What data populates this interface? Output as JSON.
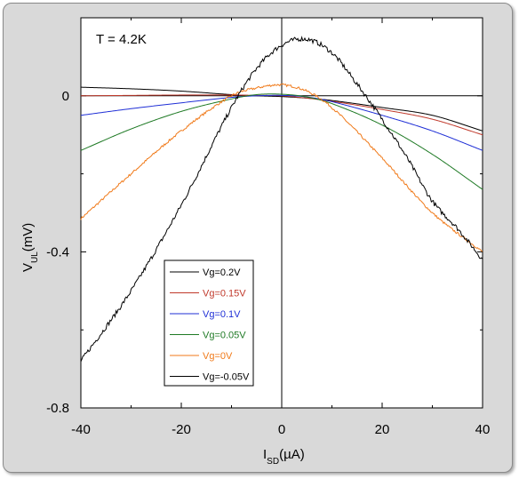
{
  "chart_data": {
    "type": "line",
    "annotation": "T = 4.2K",
    "xlabel": {
      "main": "I",
      "sub": "SD",
      "unit": "(µA)"
    },
    "ylabel": {
      "main": "V",
      "sub": "UL",
      "unit": "(mV)"
    },
    "xlim": [
      -40,
      40
    ],
    "ylim": [
      -0.8,
      0.2
    ],
    "xticks": [
      -40,
      -20,
      0,
      20,
      40
    ],
    "xtick_labels": [
      "-40",
      "-20",
      "0",
      "20",
      "40"
    ],
    "yticks": [
      0,
      -0.4,
      -0.8
    ],
    "ytick_labels": [
      "0",
      "-0.4",
      "-0.8"
    ],
    "grid": false,
    "reference_lines": {
      "x": 0,
      "y": 0
    },
    "legend_position": "bottom-center",
    "series": [
      {
        "name": "Vg=0.2V",
        "color": "#000000",
        "noise": 0.0,
        "x": [
          -40,
          -30,
          -20,
          -10,
          -5,
          0,
          5,
          10,
          20,
          30,
          40
        ],
        "y": [
          0.022,
          0.018,
          0.012,
          0.003,
          0.0,
          -0.002,
          -0.006,
          -0.012,
          -0.03,
          -0.05,
          -0.09
        ]
      },
      {
        "name": "Vg=0.15V",
        "color": "#c0392b",
        "noise": 0.0,
        "x": [
          -40,
          -30,
          -20,
          -10,
          -5,
          0,
          5,
          10,
          20,
          30,
          40
        ],
        "y": [
          0.0,
          0.001,
          0.002,
          0.002,
          0.001,
          0.0,
          -0.006,
          -0.014,
          -0.035,
          -0.06,
          -0.1
        ]
      },
      {
        "name": "Vg=0.1V",
        "color": "#1f2fd6",
        "noise": 0.0,
        "x": [
          -40,
          -30,
          -20,
          -10,
          -5,
          0,
          5,
          10,
          20,
          30,
          40
        ],
        "y": [
          -0.05,
          -0.033,
          -0.018,
          -0.004,
          0.0,
          0.001,
          -0.003,
          -0.015,
          -0.05,
          -0.09,
          -0.14
        ]
      },
      {
        "name": "Vg=0.05V",
        "color": "#1f7a25",
        "noise": 0.0,
        "x": [
          -40,
          -30,
          -20,
          -10,
          -5,
          0,
          5,
          10,
          20,
          30,
          40
        ],
        "y": [
          -0.14,
          -0.085,
          -0.04,
          -0.008,
          0.003,
          0.004,
          -0.003,
          -0.02,
          -0.075,
          -0.15,
          -0.24
        ]
      },
      {
        "name": "Vg=0V",
        "color": "#f07a1a",
        "noise": 0.003,
        "x": [
          -40,
          -30,
          -20,
          -10,
          -5,
          0,
          5,
          10,
          20,
          30,
          40
        ],
        "y": [
          -0.315,
          -0.2,
          -0.09,
          0.0,
          0.02,
          0.028,
          0.012,
          -0.03,
          -0.16,
          -0.3,
          -0.4
        ]
      },
      {
        "name": "Vg=-0.05V",
        "color": "#000000",
        "noise": 0.006,
        "x": [
          -40,
          -30,
          -20,
          -10,
          -5,
          0,
          5,
          10,
          15,
          20,
          25,
          30,
          35,
          40
        ],
        "y": [
          -0.68,
          -0.5,
          -0.28,
          -0.03,
          0.07,
          0.13,
          0.145,
          0.11,
          0.03,
          -0.06,
          -0.16,
          -0.27,
          -0.34,
          -0.42
        ]
      }
    ]
  }
}
